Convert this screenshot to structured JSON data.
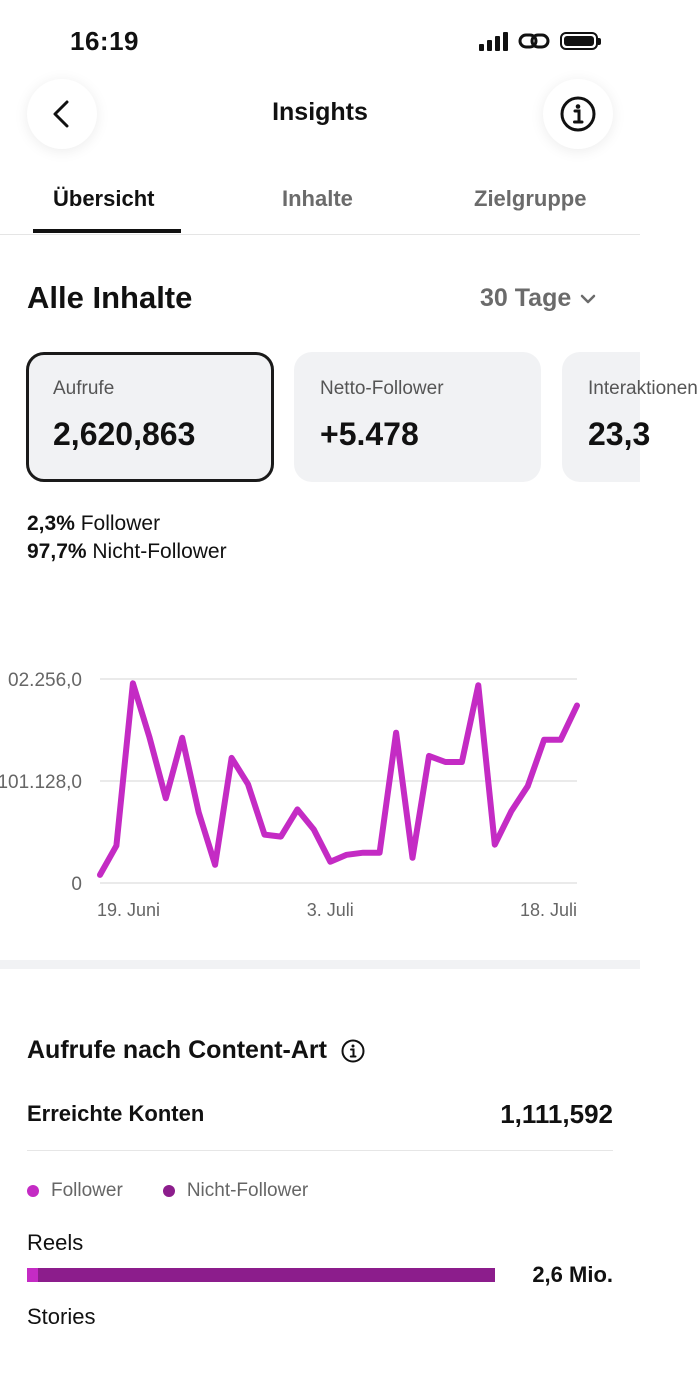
{
  "status_bar": {
    "time": "16:19"
  },
  "header": {
    "title": "Insights",
    "back_icon": "chevron-left-icon",
    "info_icon": "info-icon"
  },
  "tabs": [
    {
      "label": "Übersicht",
      "active": true
    },
    {
      "label": "Inhalte",
      "active": false
    },
    {
      "label": "Zielgruppe",
      "active": false
    }
  ],
  "overview": {
    "title": "Alle Inhalte",
    "range_label": "30 Tage"
  },
  "metrics": [
    {
      "label": "Aufrufe",
      "value": "2,620,863",
      "selected": true
    },
    {
      "label": "Netto-Follower",
      "value": "+5.478",
      "selected": false
    },
    {
      "label": "Interaktionen",
      "value": "23,3",
      "selected": false
    }
  ],
  "audience_split": [
    {
      "percent": "2,3%",
      "label": "Follower"
    },
    {
      "percent": "97,7%",
      "label": "Nicht-Follower"
    }
  ],
  "chart_data": {
    "type": "line",
    "y_ticks": [
      "02.256,0",
      "101.128,0",
      "0"
    ],
    "x_ticks": [
      "19. Juni",
      "3. Juli",
      "18. Juli"
    ],
    "ylim": [
      0,
      202256
    ],
    "grid": true,
    "color": "#c42bc4",
    "x": [
      "19. Juni",
      "20. Juni",
      "21. Juni",
      "22. Juni",
      "23. Juni",
      "24. Juni",
      "25. Juni",
      "26. Juni",
      "27. Juni",
      "28. Juni",
      "29. Juni",
      "30. Juni",
      "1. Juli",
      "2. Juli",
      "3. Juli",
      "4. Juli",
      "5. Juli",
      "6. Juli",
      "7. Juli",
      "8. Juli",
      "9. Juli",
      "10. Juli",
      "11. Juli",
      "12. Juli",
      "13. Juli",
      "14. Juli",
      "15. Juli",
      "16. Juli",
      "17. Juli",
      "18. Juli"
    ],
    "values": [
      8000,
      37000,
      198000,
      145000,
      84000,
      144000,
      70000,
      18000,
      124000,
      98000,
      48000,
      46000,
      73000,
      53000,
      21000,
      28000,
      30000,
      30000,
      149000,
      25000,
      126000,
      120000,
      120000,
      196000,
      38000,
      71000,
      96000,
      142000,
      142000,
      176000
    ]
  },
  "content_type": {
    "title": "Aufrufe nach Content-Art",
    "info_icon": "info-icon",
    "reach_label": "Erreichte Konten",
    "reach_value": "1,111,592",
    "legend": [
      {
        "label": "Follower",
        "color": "#c42bc4"
      },
      {
        "label": "Nicht-Follower",
        "color": "#8c1d8c"
      }
    ],
    "rows": [
      {
        "label": "Reels",
        "follower_fraction": 0.023,
        "value": "2,6 Mio."
      },
      {
        "label": "Stories"
      }
    ]
  },
  "colors": {
    "accent": "#c42bc4",
    "accent_dark": "#8c1d8c",
    "card_bg": "#f1f2f4"
  }
}
